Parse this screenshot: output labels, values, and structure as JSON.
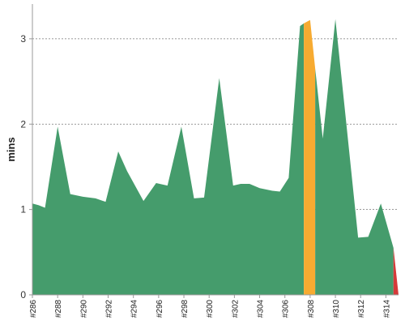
{
  "chart_data": {
    "type": "area",
    "ylabel": "mins",
    "ylim": [
      0,
      3.35
    ],
    "yticks": [
      0,
      1,
      2,
      3
    ],
    "xlim": [
      286,
      315
    ],
    "xticks": [
      "#286",
      "#288",
      "#290",
      "#292",
      "#294",
      "#296",
      "#298",
      "#300",
      "#302",
      "#304",
      "#306",
      "#308",
      "#310",
      "#312",
      "#314"
    ],
    "grid": true,
    "colors": {
      "success": "#459c6c",
      "unstable": "#f7ab31",
      "failed": "#d53a3a"
    },
    "series": [
      {
        "status": "success",
        "points": [
          [
            286,
            1.07
          ],
          [
            286.5,
            1.05
          ],
          [
            287,
            1.02
          ],
          [
            288,
            1.97
          ],
          [
            289,
            1.18
          ],
          [
            290,
            1.15
          ],
          [
            291,
            1.13
          ],
          [
            291.8,
            1.09
          ],
          [
            292.8,
            1.68
          ],
          [
            293.5,
            1.45
          ],
          [
            294.8,
            1.1
          ],
          [
            295.8,
            1.31
          ],
          [
            296.7,
            1.28
          ],
          [
            297.8,
            1.97
          ],
          [
            298.8,
            1.13
          ],
          [
            299.6,
            1.14
          ],
          [
            300.8,
            2.54
          ],
          [
            301.9,
            1.28
          ],
          [
            302.5,
            1.3
          ],
          [
            303.2,
            1.3
          ],
          [
            304,
            1.25
          ],
          [
            305,
            1.22
          ],
          [
            305.6,
            1.21
          ],
          [
            306.3,
            1.37
          ],
          [
            307.2,
            3.15
          ],
          [
            307.5,
            3.18
          ]
        ]
      },
      {
        "status": "unstable",
        "points": [
          [
            307.5,
            3.18
          ],
          [
            308,
            3.22
          ],
          [
            308.4,
            2.65
          ]
        ]
      },
      {
        "status": "success",
        "points": [
          [
            308.4,
            2.65
          ],
          [
            309,
            1.83
          ],
          [
            310,
            3.23
          ],
          [
            310.8,
            2.1
          ],
          [
            311.8,
            0.67
          ],
          [
            312.6,
            0.68
          ],
          [
            313.6,
            1.07
          ],
          [
            314.6,
            0.55
          ]
        ]
      },
      {
        "status": "failed",
        "points": [
          [
            314.6,
            0.55
          ],
          [
            315,
            0.0
          ]
        ]
      }
    ]
  }
}
